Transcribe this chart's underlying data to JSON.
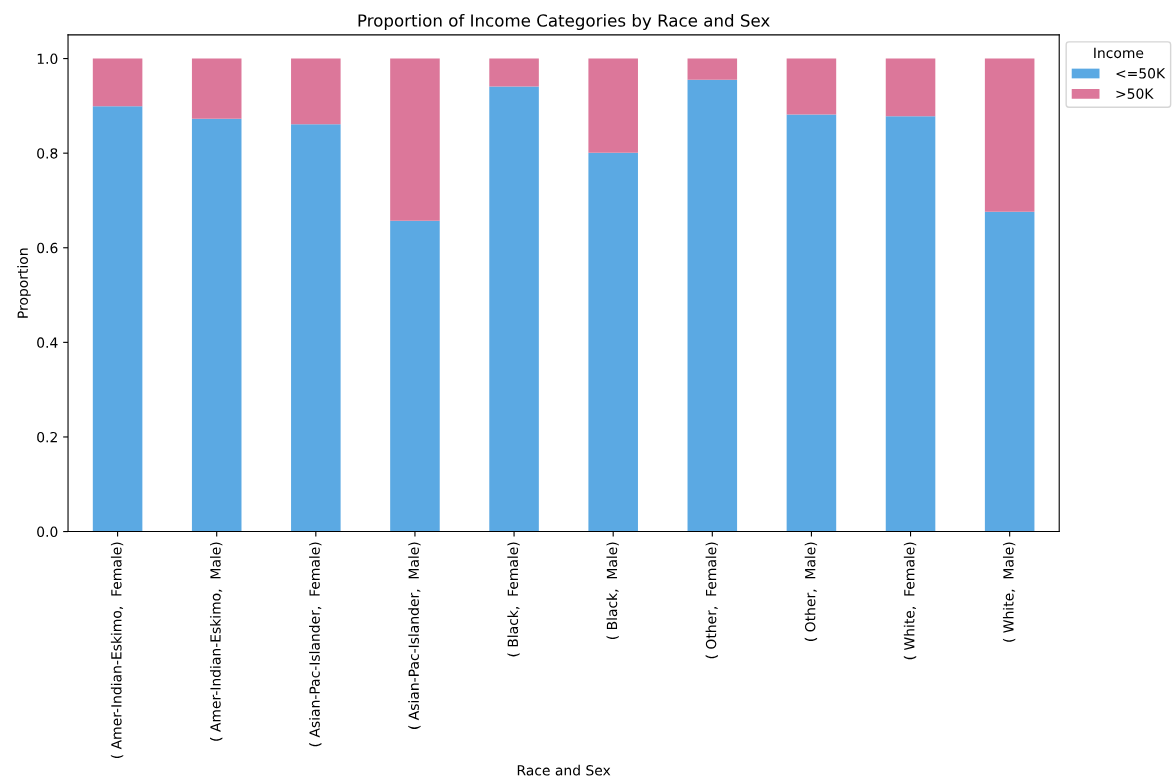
{
  "chart_data": {
    "type": "bar",
    "title": "Proportion of Income Categories by Race and Sex",
    "xlabel": "Race and Sex",
    "ylabel": "Proportion",
    "legend_title": "Income",
    "categories": [
      "( Amer-Indian-Eskimo,  Female)",
      "( Amer-Indian-Eskimo,  Male)",
      "( Asian-Pac-Islander,  Female)",
      "( Asian-Pac-Islander,  Male)",
      "( Black,  Female)",
      "( Black,  Male)",
      "( Other,  Female)",
      "( Other,  Male)",
      "( White,  Female)",
      "( White,  Male)"
    ],
    "series": [
      {
        "name": " <=50K",
        "color": "#5ba9e3",
        "values": [
          0.899,
          0.873,
          0.861,
          0.657,
          0.941,
          0.801,
          0.955,
          0.882,
          0.878,
          0.676
        ]
      },
      {
        "name": " >50K",
        "color": "#dc779a",
        "values": [
          0.101,
          0.127,
          0.139,
          0.343,
          0.059,
          0.199,
          0.045,
          0.118,
          0.122,
          0.324
        ]
      }
    ],
    "stacked": true,
    "ylim": [
      0,
      1.05
    ],
    "yticks": [
      {
        "value": 0,
        "label": "0.0"
      },
      {
        "value": 0.2,
        "label": "0.2"
      },
      {
        "value": 0.4,
        "label": "0.4"
      },
      {
        "value": 0.6,
        "label": "0.6"
      },
      {
        "value": 0.8,
        "label": "0.8"
      },
      {
        "value": 1.0,
        "label": "1.0"
      }
    ],
    "legend": "top right",
    "grid": false
  }
}
